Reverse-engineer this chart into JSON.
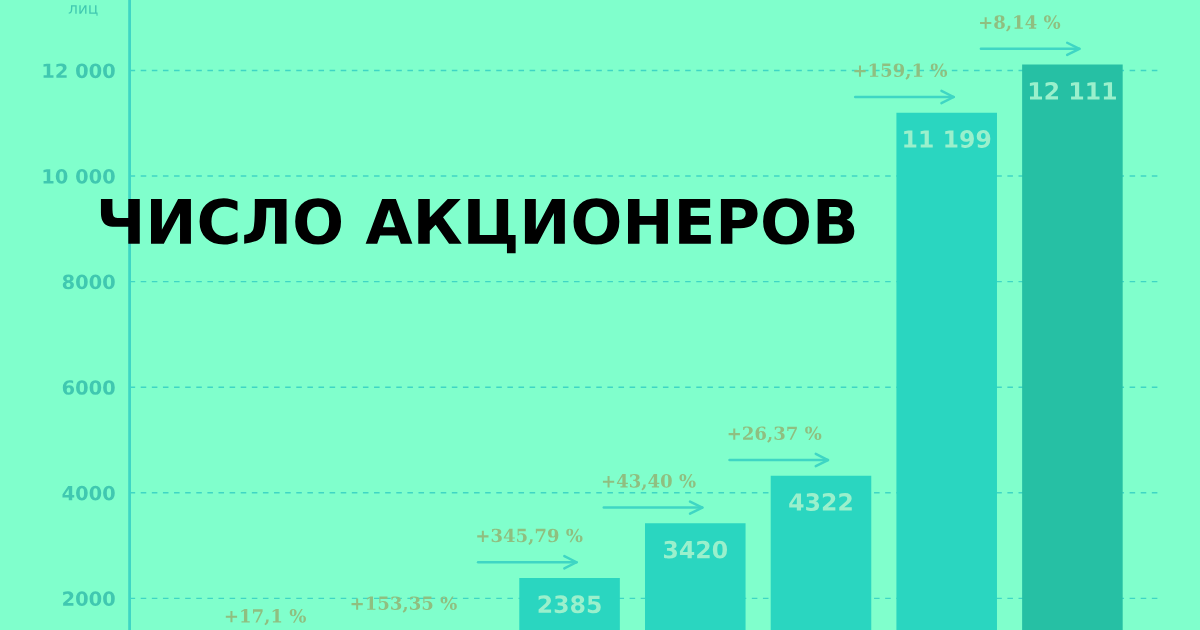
{
  "chart_data": {
    "type": "bar",
    "title": "ЧИСЛО АКЦИОНЕРОВ",
    "ylabel": "лиц",
    "categories": [
      null,
      null,
      null,
      null,
      null,
      null,
      null,
      null
    ],
    "values": [
      null,
      null,
      null,
      2385,
      3420,
      4322,
      11199,
      12111
    ],
    "colors": [
      "#2ad6c0",
      "#2ad6c0",
      "#2ad6c0",
      "#2ad6c0",
      "#2ad6c0",
      "#2ad6c0",
      "#2ad6c0",
      "#26c0a4"
    ],
    "value_labels": [
      null,
      null,
      null,
      "2385",
      "3420",
      "4322",
      "11 199",
      "12 111"
    ],
    "annotations": [
      "+17,1 %",
      "+153,35 %",
      "+345,79 %",
      "+43,40 %",
      "+26,37 %",
      "+159,1 %",
      "+8,14 %"
    ],
    "ylim": [
      1400,
      13335
    ],
    "yticks": [
      2000,
      4000,
      6000,
      8000,
      {
        "value": 10000,
        "label": "10 000"
      },
      {
        "value": 12000,
        "label": "12 000"
      }
    ],
    "grid": "y"
  }
}
